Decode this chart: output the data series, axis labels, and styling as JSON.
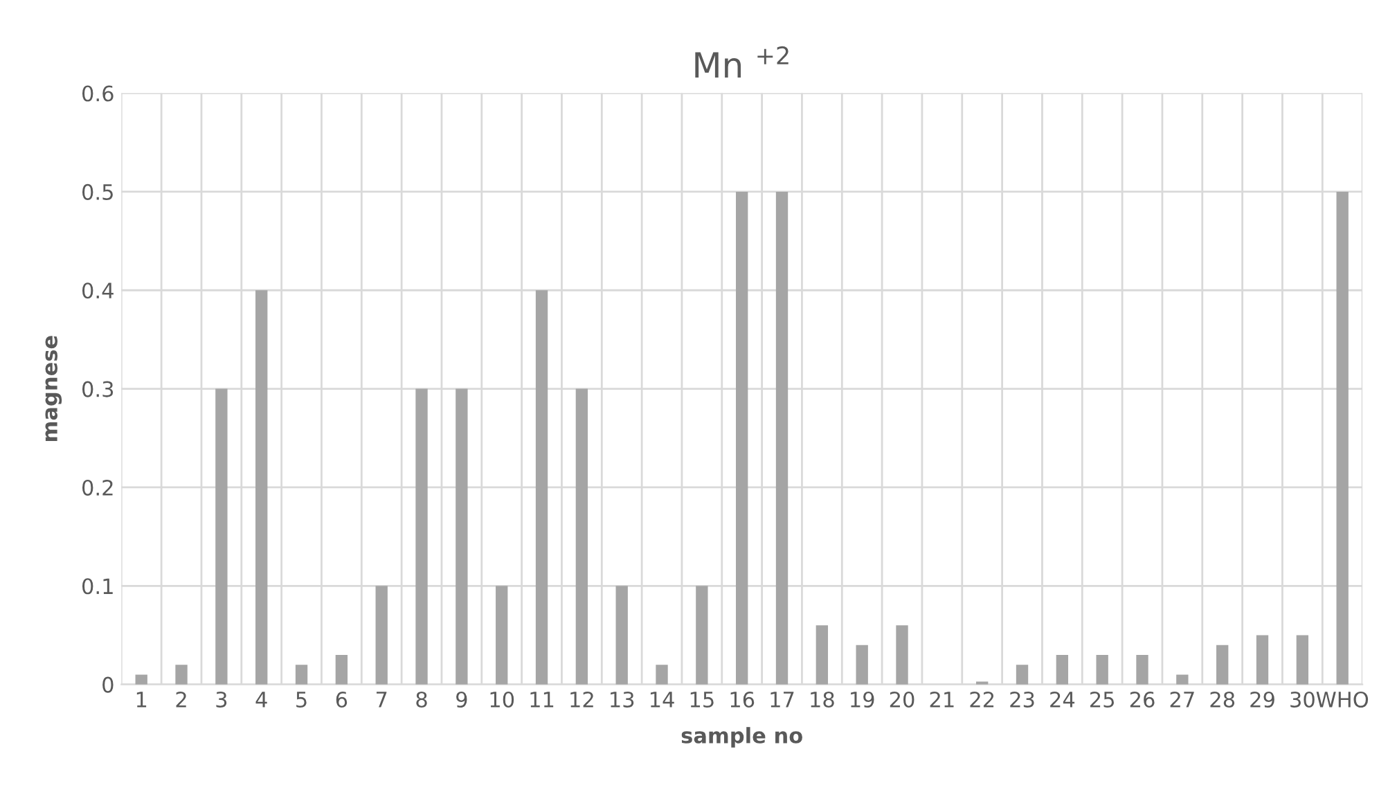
{
  "chart_data": {
    "type": "bar",
    "title": "Mn $^{+2}$",
    "xlabel": "sample no",
    "ylabel": "magnese",
    "categories": [
      "1",
      "2",
      "3",
      "4",
      "5",
      "6",
      "7",
      "8",
      "9",
      "10",
      "11",
      "12",
      "13",
      "14",
      "15",
      "16",
      "17",
      "18",
      "19",
      "20",
      "21",
      "22",
      "23",
      "24",
      "25",
      "26",
      "27",
      "28",
      "29",
      "30",
      "WHO"
    ],
    "values": [
      0.01,
      0.02,
      0.3,
      0.4,
      0.02,
      0.03,
      0.1,
      0.3,
      0.3,
      0.1,
      0.4,
      0.3,
      0.1,
      0.02,
      0.1,
      0.5,
      0.5,
      0.06,
      0.04,
      0.06,
      0,
      0.003,
      0.02,
      0.03,
      0.03,
      0.03,
      0.01,
      0.04,
      0.05,
      0.05,
      0.5
    ],
    "color": "#a5a5a5",
    "ylim": [
      0,
      0.6
    ],
    "yticks": [
      0,
      0.1,
      0.2,
      0.3,
      0.4,
      0.5,
      0.6
    ],
    "grid": true,
    "legend": false
  }
}
